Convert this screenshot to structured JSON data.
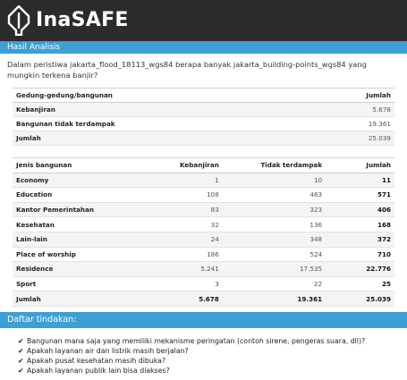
{
  "brand": {
    "name": "InaSAFE"
  },
  "header": {
    "title": "Hasil Analisis"
  },
  "question": "Dalam peristiwa jakarta_flood_18113_wgs84 berapa banyak jakarta_building-points_wgs84 yang mungkin terkena banjir?",
  "summary_table": {
    "headers": [
      "Gedung-gedung/bangunan",
      "Jumlah"
    ],
    "rows": [
      {
        "label": "Kebanjiran",
        "value": "5.678"
      },
      {
        "label": "Bangunan tidak terdampak",
        "value": "19.361"
      },
      {
        "label": "Jumlah",
        "value": "25.039"
      }
    ]
  },
  "breakdown_table": {
    "headers": [
      "Jenis bangunan",
      "Kebanjiran",
      "Tidak terdampak",
      "Jumlah"
    ],
    "rows": [
      {
        "type": "Economy",
        "flooded": "1",
        "unaffected": "10",
        "total": "11"
      },
      {
        "type": "Education",
        "flooded": "108",
        "unaffected": "463",
        "total": "571"
      },
      {
        "type": "Kantor Pemerintahan",
        "flooded": "83",
        "unaffected": "323",
        "total": "406"
      },
      {
        "type": "Kesehatan",
        "flooded": "32",
        "unaffected": "136",
        "total": "168"
      },
      {
        "type": "Lain-lain",
        "flooded": "24",
        "unaffected": "348",
        "total": "372"
      },
      {
        "type": "Place of worship",
        "flooded": "186",
        "unaffected": "524",
        "total": "710"
      },
      {
        "type": "Residence",
        "flooded": "5.241",
        "unaffected": "17.535",
        "total": "22.776"
      },
      {
        "type": "Sport",
        "flooded": "3",
        "unaffected": "22",
        "total": "25"
      }
    ],
    "total": {
      "type": "Jumlah",
      "flooded": "5.678",
      "unaffected": "19.361",
      "total": "25.039"
    }
  },
  "actions_header": "Daftar tindakan:",
  "actions": [
    "Bangunan mana saja yang memiliki mekanisme peringatan (contoh sirene, pengeras suara, dll)?",
    "Apakah layanan air dan listrik masih berjalan?",
    "Apakah pusat kesehatan masih dibuka?",
    "Apakah layanan publik lain bisa diakses?"
  ],
  "colors": {
    "brand_bar": "#2b2b2b",
    "accent": "#3d9fd4"
  },
  "icons": {
    "logo": "inasafe-logo-icon",
    "action_bullet": "check-icon"
  }
}
